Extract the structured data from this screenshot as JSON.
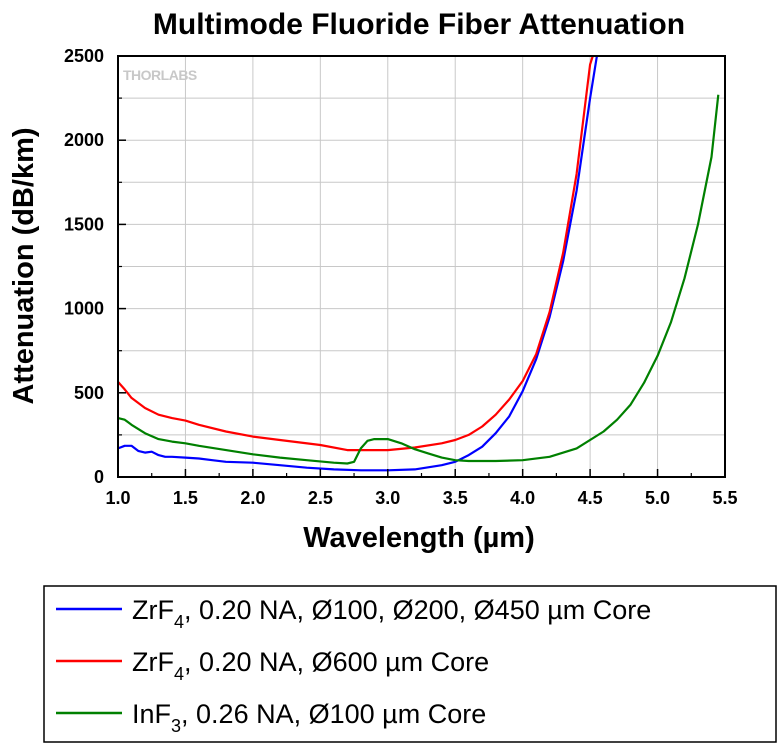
{
  "chart_data": {
    "type": "line",
    "title": "Multimode Fluoride Fiber Attenuation",
    "xlabel": "Wavelength (µm)",
    "ylabel": "Attenuation (dB/km)",
    "xlim": [
      1.0,
      5.5
    ],
    "ylim": [
      0,
      2500
    ],
    "xticks": [
      1.0,
      1.5,
      2.0,
      2.5,
      3.0,
      3.5,
      4.0,
      4.5,
      5.0,
      5.5
    ],
    "xtick_labels": [
      "1.0",
      "1.5",
      "2.0",
      "2.5",
      "3.0",
      "3.5",
      "4.0",
      "4.5",
      "5.0",
      "5.5"
    ],
    "yticks": [
      0,
      500,
      1000,
      1500,
      2000,
      2500
    ],
    "ytick_labels": [
      "0",
      "500",
      "1000",
      "1500",
      "2000",
      "2500"
    ],
    "grid": true,
    "legend_position": "bottom",
    "watermark": "THORLABS",
    "series": [
      {
        "legend_main": "ZrF",
        "legend_sub": "4",
        "legend_rest": ", 0.20 NA, Ø100, Ø200, Ø450 µm Core",
        "color": "#0000ff",
        "x": [
          1.0,
          1.05,
          1.1,
          1.15,
          1.2,
          1.25,
          1.3,
          1.35,
          1.4,
          1.5,
          1.6,
          1.7,
          1.8,
          2.0,
          2.2,
          2.4,
          2.6,
          2.8,
          3.0,
          3.2,
          3.4,
          3.5,
          3.6,
          3.7,
          3.8,
          3.9,
          4.0,
          4.1,
          4.2,
          4.3,
          4.4,
          4.5,
          4.55
        ],
        "y": [
          170,
          185,
          185,
          155,
          145,
          150,
          130,
          120,
          120,
          115,
          110,
          100,
          90,
          85,
          70,
          55,
          45,
          40,
          40,
          45,
          70,
          90,
          130,
          180,
          260,
          360,
          510,
          700,
          950,
          1280,
          1700,
          2250,
          2500
        ]
      },
      {
        "legend_main": "ZrF",
        "legend_sub": "4",
        "legend_rest": ", 0.20 NA, Ø600 µm Core",
        "color": "#ff0000",
        "x": [
          1.0,
          1.05,
          1.1,
          1.2,
          1.3,
          1.4,
          1.5,
          1.6,
          1.8,
          2.0,
          2.2,
          2.5,
          2.7,
          3.0,
          3.2,
          3.4,
          3.5,
          3.6,
          3.7,
          3.8,
          3.9,
          4.0,
          4.1,
          4.2,
          4.3,
          4.4,
          4.5,
          4.52
        ],
        "y": [
          565,
          520,
          470,
          410,
          370,
          350,
          335,
          310,
          270,
          240,
          220,
          190,
          160,
          160,
          175,
          200,
          220,
          250,
          300,
          370,
          460,
          570,
          730,
          980,
          1330,
          1800,
          2450,
          2500
        ]
      },
      {
        "legend_main": "InF",
        "legend_sub": "3",
        "legend_rest": ", 0.26 NA, Ø100 µm Core",
        "color": "#008000",
        "x": [
          1.0,
          1.05,
          1.1,
          1.2,
          1.3,
          1.4,
          1.5,
          1.6,
          1.8,
          2.0,
          2.2,
          2.4,
          2.6,
          2.7,
          2.75,
          2.8,
          2.85,
          2.9,
          3.0,
          3.1,
          3.2,
          3.3,
          3.4,
          3.5,
          3.6,
          3.8,
          4.0,
          4.2,
          4.4,
          4.6,
          4.7,
          4.8,
          4.9,
          5.0,
          5.1,
          5.2,
          5.3,
          5.4,
          5.45
        ],
        "y": [
          350,
          340,
          310,
          260,
          225,
          210,
          200,
          185,
          160,
          135,
          115,
          100,
          85,
          80,
          90,
          170,
          215,
          225,
          225,
          200,
          165,
          140,
          115,
          100,
          95,
          95,
          100,
          120,
          170,
          270,
          340,
          430,
          560,
          720,
          920,
          1180,
          1500,
          1900,
          2270
        ]
      }
    ]
  }
}
